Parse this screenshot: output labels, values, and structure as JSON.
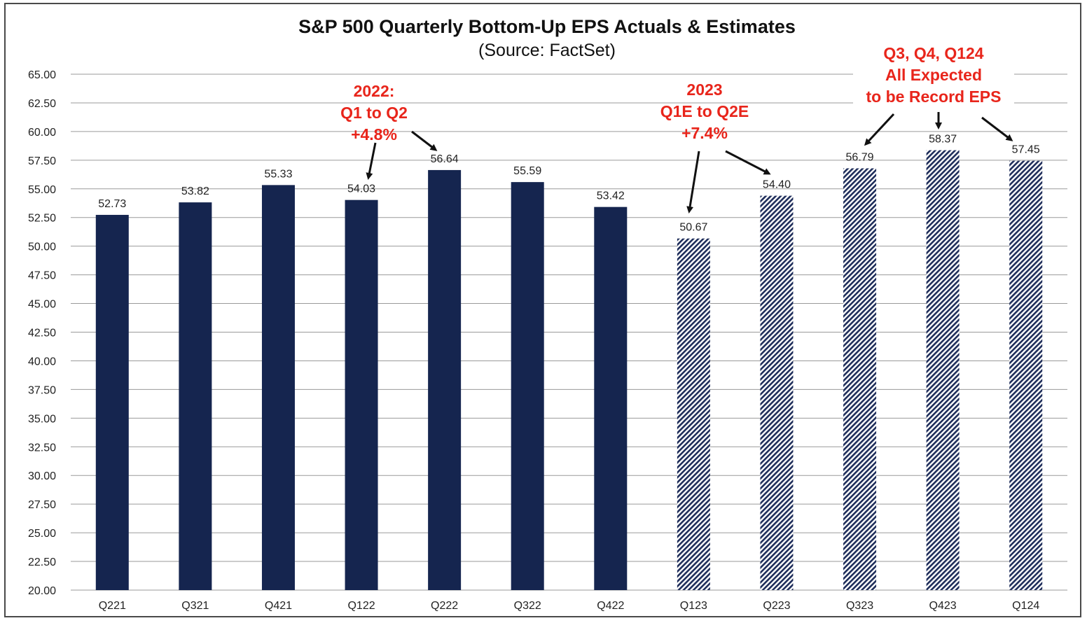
{
  "colors": {
    "actual": "#15254f",
    "estimate_stripe": "#1e2d5a",
    "annotation": "#e8251b",
    "grid": "#9a9a9a"
  },
  "chart_data": {
    "type": "bar",
    "title": "S&P 500 Quarterly Bottom-Up EPS Actuals & Estimates",
    "subtitle": "(Source: FactSet)",
    "xlabel": "",
    "ylabel": "",
    "ylim": [
      20,
      65
    ],
    "yticks": [
      "20.00",
      "22.50",
      "25.00",
      "27.50",
      "30.00",
      "32.50",
      "35.00",
      "37.50",
      "40.00",
      "42.50",
      "45.00",
      "47.50",
      "50.00",
      "52.50",
      "55.00",
      "57.50",
      "60.00",
      "62.50",
      "65.00"
    ],
    "grid": true,
    "categories": [
      "Q221",
      "Q321",
      "Q421",
      "Q122",
      "Q222",
      "Q322",
      "Q422",
      "Q123",
      "Q223",
      "Q323",
      "Q423",
      "Q124"
    ],
    "values": [
      52.73,
      53.82,
      55.33,
      54.03,
      56.64,
      55.59,
      53.42,
      50.67,
      54.4,
      56.79,
      58.37,
      57.45
    ],
    "value_labels": [
      "52.73",
      "53.82",
      "55.33",
      "54.03",
      "56.64",
      "55.59",
      "53.42",
      "50.67",
      "54.40",
      "56.79",
      "58.37",
      "57.45"
    ],
    "kind": [
      "actual",
      "actual",
      "actual",
      "actual",
      "actual",
      "actual",
      "actual",
      "estimate",
      "estimate",
      "estimate",
      "estimate",
      "estimate"
    ],
    "annotations": [
      {
        "name": "annotation-2022",
        "lines": [
          "2022:",
          "Q1 to Q2",
          "+4.8%"
        ],
        "targets": [
          "Q122",
          "Q222"
        ]
      },
      {
        "name": "annotation-2023",
        "lines": [
          "2023",
          "Q1E to Q2E",
          "+7.4%"
        ],
        "targets": [
          "Q123",
          "Q223"
        ]
      },
      {
        "name": "annotation-record",
        "lines": [
          "Q3, Q4, Q124",
          "All Expected",
          "to be Record EPS"
        ],
        "targets": [
          "Q323",
          "Q423",
          "Q124"
        ]
      }
    ]
  }
}
